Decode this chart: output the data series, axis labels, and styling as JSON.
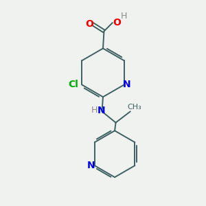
{
  "bg_color": "#f0f2f0",
  "bond_color": "#3d6060",
  "N_color": "#0000ee",
  "O_color": "#ee0000",
  "Cl_color": "#00aa00",
  "H_color": "#888888",
  "bond_width": 1.4,
  "font_size": 9,
  "figsize": [
    3.0,
    3.0
  ],
  "dpi": 100,
  "xlim": [
    0,
    10
  ],
  "ylim": [
    0,
    10
  ]
}
